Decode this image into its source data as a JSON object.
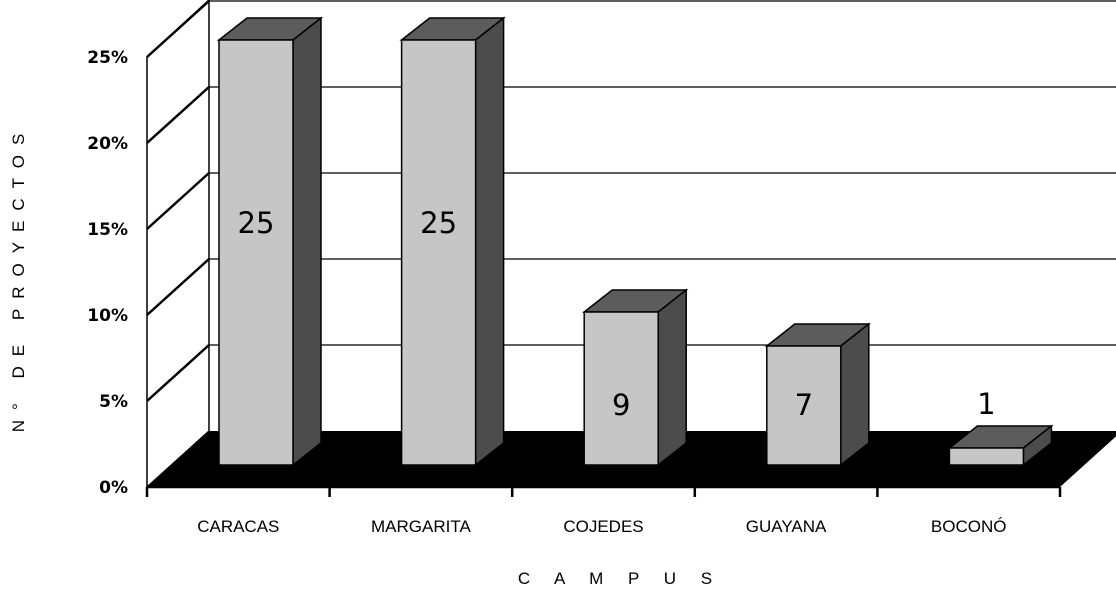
{
  "chart_data": {
    "type": "bar",
    "style": "3d",
    "categories": [
      "CARACAS",
      "MARGARITA",
      "COJEDES",
      "GUAYANA",
      "BOCONÓ"
    ],
    "values": [
      25,
      25,
      9,
      7,
      1
    ],
    "data_labels": [
      "25",
      "25",
      "9",
      "7",
      "1"
    ],
    "y_ticks": [
      "0%",
      "5%",
      "10%",
      "15%",
      "20%",
      "25%"
    ],
    "ylim": [
      0,
      25
    ],
    "xlabel": "C A M P U S",
    "ylabel": "N° DE PROYECTOS",
    "grid": true,
    "legend": "none"
  },
  "colors": {
    "bar_front": "#c6c6c6",
    "bar_side": "#4c4c4c",
    "bar_top": "#5c5c5c",
    "floor": "#000000",
    "grid": "#000000"
  }
}
